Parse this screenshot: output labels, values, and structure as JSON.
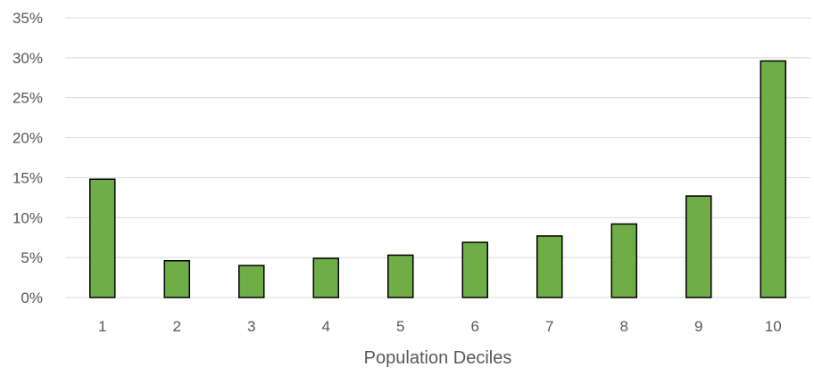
{
  "chart_data": {
    "type": "bar",
    "title": "",
    "xlabel": "Population Deciles",
    "ylabel": "",
    "categories": [
      "1",
      "2",
      "3",
      "4",
      "5",
      "6",
      "7",
      "8",
      "9",
      "10"
    ],
    "values": [
      14.8,
      4.6,
      4.0,
      4.9,
      5.3,
      6.9,
      7.7,
      9.2,
      12.7,
      29.6
    ],
    "ylim": [
      0,
      35
    ],
    "yticks": [
      0,
      5,
      10,
      15,
      20,
      25,
      30,
      35
    ],
    "ytick_labels": [
      "0%",
      "5%",
      "10%",
      "15%",
      "20%",
      "25%",
      "30%",
      "35%"
    ],
    "y_unit": "%",
    "grid": true,
    "legend": "none",
    "colors": {
      "bar_fill": "#70ad47",
      "bar_stroke": "#000000",
      "gridline": "#d9d9d9",
      "axis_line": "#d9d9d9",
      "text": "#595959"
    }
  }
}
